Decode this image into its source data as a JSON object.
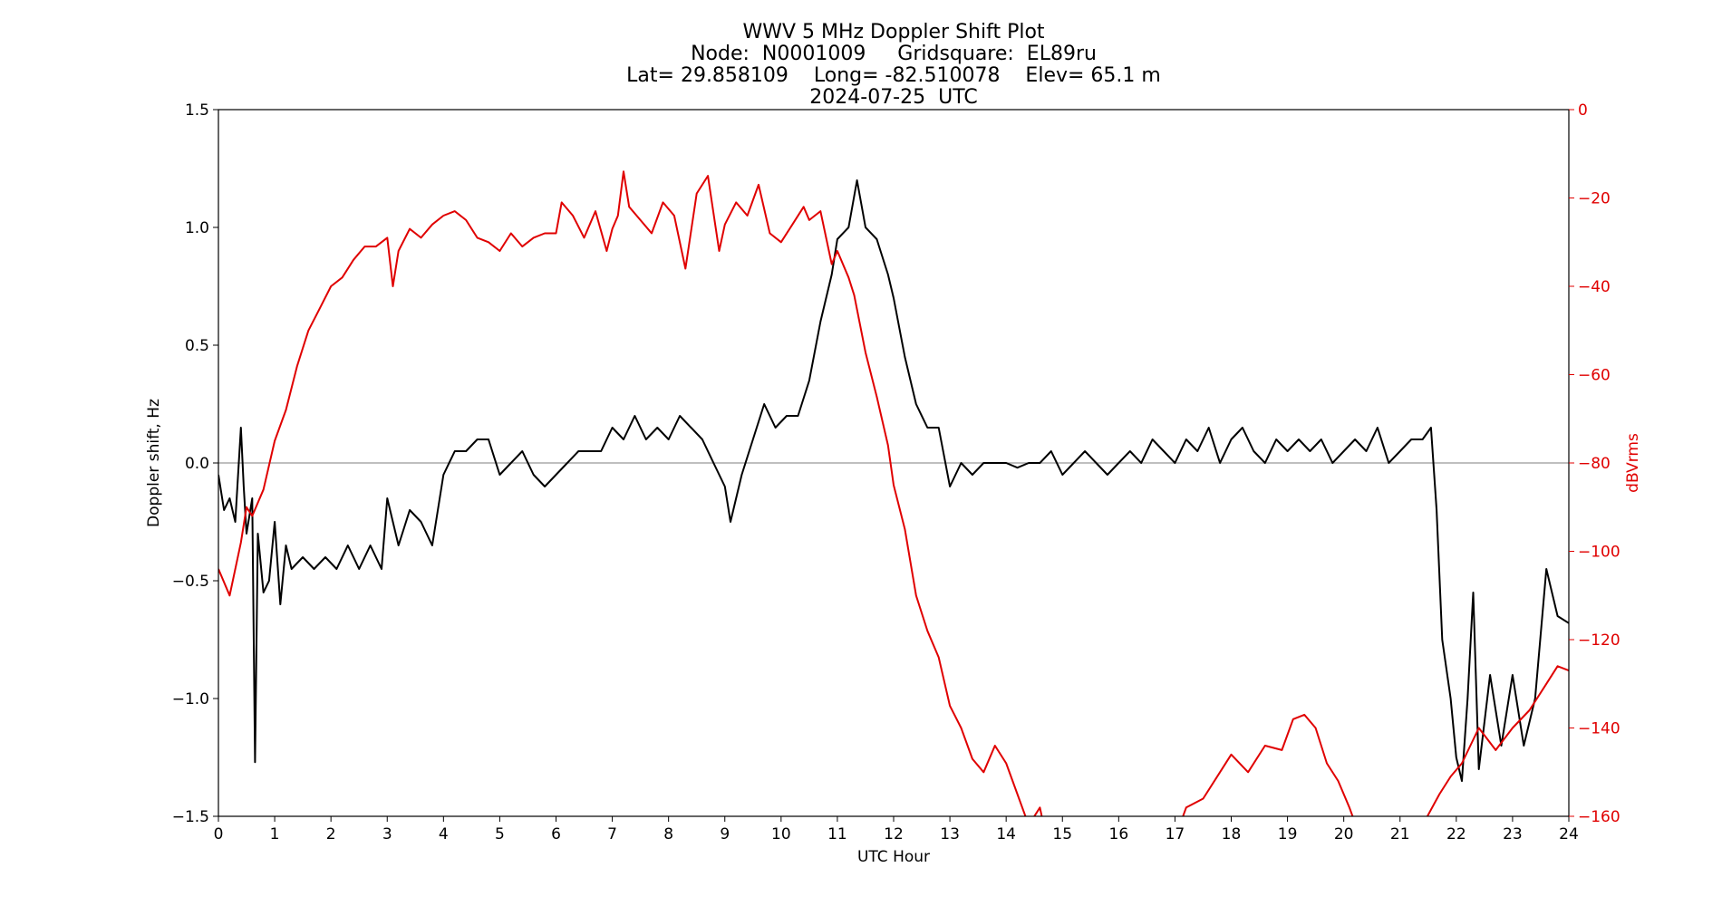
{
  "chart_data": {
    "type": "line",
    "title_lines": [
      "WWV 5 MHz Doppler Shift Plot",
      "Node:  N0001009     Gridsquare:  EL89ru",
      "Lat= 29.858109    Long= -82.510078    Elev= 65.1 m",
      "2024-07-25  UTC"
    ],
    "xlabel": "UTC Hour",
    "ylabel": "Doppler shift, Hz",
    "ylabel_right": "dBVrms",
    "xlim": [
      0,
      24
    ],
    "ylim": [
      -1.5,
      1.5
    ],
    "ylim_right": [
      -160,
      0
    ],
    "x_ticks": [
      0,
      1,
      2,
      3,
      4,
      5,
      6,
      7,
      8,
      9,
      10,
      11,
      12,
      13,
      14,
      15,
      16,
      17,
      18,
      19,
      20,
      21,
      22,
      23,
      24
    ],
    "y_ticks": [
      1.5,
      1.0,
      0.5,
      0.0,
      -0.5,
      -1.0,
      -1.5
    ],
    "y_tick_labels": [
      "1.5",
      "1.0",
      "0.5",
      "0.0",
      "−0.5",
      "−1.0",
      "−1.5"
    ],
    "y_ticks_right": [
      0,
      -20,
      -40,
      -60,
      -80,
      -100,
      -120,
      -140,
      -160
    ],
    "y_tick_labels_right": [
      "0",
      "−20",
      "−40",
      "−60",
      "−80",
      "−100",
      "−120",
      "−140",
      "−160"
    ],
    "reference_line_y": 0.0,
    "grid": false,
    "colors": {
      "doppler": "#000000",
      "power": "#e00000",
      "reference": "#999999"
    },
    "series": [
      {
        "axis": "left",
        "color": "#000000",
        "points": [
          [
            0,
            -0.05
          ],
          [
            0.1,
            -0.2
          ],
          [
            0.2,
            -0.15
          ],
          [
            0.3,
            -0.25
          ],
          [
            0.4,
            0.15
          ],
          [
            0.45,
            -0.1
          ],
          [
            0.5,
            -0.3
          ],
          [
            0.6,
            -0.15
          ],
          [
            0.65,
            -1.27
          ],
          [
            0.7,
            -0.3
          ],
          [
            0.8,
            -0.55
          ],
          [
            0.9,
            -0.5
          ],
          [
            1.0,
            -0.25
          ],
          [
            1.1,
            -0.6
          ],
          [
            1.2,
            -0.35
          ],
          [
            1.3,
            -0.45
          ],
          [
            1.5,
            -0.4
          ],
          [
            1.7,
            -0.45
          ],
          [
            1.9,
            -0.4
          ],
          [
            2.1,
            -0.45
          ],
          [
            2.3,
            -0.35
          ],
          [
            2.5,
            -0.45
          ],
          [
            2.7,
            -0.35
          ],
          [
            2.9,
            -0.45
          ],
          [
            3.0,
            -0.15
          ],
          [
            3.2,
            -0.35
          ],
          [
            3.4,
            -0.2
          ],
          [
            3.6,
            -0.25
          ],
          [
            3.8,
            -0.35
          ],
          [
            4.0,
            -0.05
          ],
          [
            4.2,
            0.05
          ],
          [
            4.4,
            0.05
          ],
          [
            4.6,
            0.1
          ],
          [
            4.8,
            0.1
          ],
          [
            5.0,
            -0.05
          ],
          [
            5.2,
            0.0
          ],
          [
            5.4,
            0.05
          ],
          [
            5.6,
            -0.05
          ],
          [
            5.8,
            -0.1
          ],
          [
            6.0,
            -0.05
          ],
          [
            6.2,
            0.0
          ],
          [
            6.4,
            0.05
          ],
          [
            6.6,
            0.05
          ],
          [
            6.8,
            0.05
          ],
          [
            7.0,
            0.15
          ],
          [
            7.2,
            0.1
          ],
          [
            7.4,
            0.2
          ],
          [
            7.6,
            0.1
          ],
          [
            7.8,
            0.15
          ],
          [
            8.0,
            0.1
          ],
          [
            8.2,
            0.2
          ],
          [
            8.4,
            0.15
          ],
          [
            8.6,
            0.1
          ],
          [
            8.8,
            0.0
          ],
          [
            9.0,
            -0.1
          ],
          [
            9.1,
            -0.25
          ],
          [
            9.3,
            -0.05
          ],
          [
            9.5,
            0.1
          ],
          [
            9.7,
            0.25
          ],
          [
            9.9,
            0.15
          ],
          [
            10.1,
            0.2
          ],
          [
            10.3,
            0.2
          ],
          [
            10.5,
            0.35
          ],
          [
            10.7,
            0.6
          ],
          [
            10.9,
            0.8
          ],
          [
            11.0,
            0.95
          ],
          [
            11.2,
            1.0
          ],
          [
            11.35,
            1.2
          ],
          [
            11.5,
            1.0
          ],
          [
            11.7,
            0.95
          ],
          [
            11.9,
            0.8
          ],
          [
            12.0,
            0.7
          ],
          [
            12.2,
            0.45
          ],
          [
            12.4,
            0.25
          ],
          [
            12.6,
            0.15
          ],
          [
            12.8,
            0.15
          ],
          [
            13.0,
            -0.1
          ],
          [
            13.2,
            0.0
          ],
          [
            13.4,
            -0.05
          ],
          [
            13.6,
            0.0
          ],
          [
            13.8,
            0.0
          ],
          [
            14.0,
            0.0
          ],
          [
            14.2,
            -0.02
          ],
          [
            14.4,
            0.0
          ],
          [
            14.6,
            0.0
          ],
          [
            14.8,
            0.05
          ],
          [
            15.0,
            -0.05
          ],
          [
            15.2,
            0.0
          ],
          [
            15.4,
            0.05
          ],
          [
            15.6,
            0.0
          ],
          [
            15.8,
            -0.05
          ],
          [
            16.0,
            0.0
          ],
          [
            16.2,
            0.05
          ],
          [
            16.4,
            0.0
          ],
          [
            16.6,
            0.1
          ],
          [
            16.8,
            0.05
          ],
          [
            17.0,
            0.0
          ],
          [
            17.2,
            0.1
          ],
          [
            17.4,
            0.05
          ],
          [
            17.6,
            0.15
          ],
          [
            17.8,
            0.0
          ],
          [
            18.0,
            0.1
          ],
          [
            18.2,
            0.15
          ],
          [
            18.4,
            0.05
          ],
          [
            18.6,
            0.0
          ],
          [
            18.8,
            0.1
          ],
          [
            19.0,
            0.05
          ],
          [
            19.2,
            0.1
          ],
          [
            19.4,
            0.05
          ],
          [
            19.6,
            0.1
          ],
          [
            19.8,
            0.0
          ],
          [
            20.0,
            0.05
          ],
          [
            20.2,
            0.1
          ],
          [
            20.4,
            0.05
          ],
          [
            20.6,
            0.15
          ],
          [
            20.8,
            0.0
          ],
          [
            21.0,
            0.05
          ],
          [
            21.2,
            0.1
          ],
          [
            21.4,
            0.1
          ],
          [
            21.55,
            0.15
          ],
          [
            21.65,
            -0.2
          ],
          [
            21.75,
            -0.75
          ],
          [
            21.9,
            -1.0
          ],
          [
            22.0,
            -1.25
          ],
          [
            22.1,
            -1.35
          ],
          [
            22.2,
            -1.0
          ],
          [
            22.3,
            -0.55
          ],
          [
            22.4,
            -1.3
          ],
          [
            22.6,
            -0.9
          ],
          [
            22.8,
            -1.2
          ],
          [
            23.0,
            -0.9
          ],
          [
            23.2,
            -1.2
          ],
          [
            23.4,
            -1.0
          ],
          [
            23.6,
            -0.45
          ],
          [
            23.8,
            -0.65
          ],
          [
            24.0,
            -0.68
          ]
        ]
      },
      {
        "axis": "right",
        "color": "#e00000",
        "points": [
          [
            0,
            -104
          ],
          [
            0.2,
            -110
          ],
          [
            0.4,
            -98
          ],
          [
            0.5,
            -90
          ],
          [
            0.6,
            -92
          ],
          [
            0.8,
            -86
          ],
          [
            1.0,
            -75
          ],
          [
            1.2,
            -68
          ],
          [
            1.4,
            -58
          ],
          [
            1.6,
            -50
          ],
          [
            1.8,
            -45
          ],
          [
            2.0,
            -40
          ],
          [
            2.2,
            -38
          ],
          [
            2.4,
            -34
          ],
          [
            2.6,
            -31
          ],
          [
            2.8,
            -31
          ],
          [
            3.0,
            -29
          ],
          [
            3.1,
            -40
          ],
          [
            3.2,
            -32
          ],
          [
            3.4,
            -27
          ],
          [
            3.6,
            -29
          ],
          [
            3.8,
            -26
          ],
          [
            4.0,
            -24
          ],
          [
            4.2,
            -23
          ],
          [
            4.4,
            -25
          ],
          [
            4.6,
            -29
          ],
          [
            4.8,
            -30
          ],
          [
            5.0,
            -32
          ],
          [
            5.2,
            -28
          ],
          [
            5.4,
            -31
          ],
          [
            5.6,
            -29
          ],
          [
            5.8,
            -28
          ],
          [
            6.0,
            -28
          ],
          [
            6.1,
            -21
          ],
          [
            6.3,
            -24
          ],
          [
            6.5,
            -29
          ],
          [
            6.7,
            -23
          ],
          [
            6.9,
            -32
          ],
          [
            7.0,
            -27
          ],
          [
            7.1,
            -24
          ],
          [
            7.2,
            -14
          ],
          [
            7.3,
            -22
          ],
          [
            7.5,
            -25
          ],
          [
            7.7,
            -28
          ],
          [
            7.9,
            -21
          ],
          [
            8.1,
            -24
          ],
          [
            8.3,
            -36
          ],
          [
            8.5,
            -19
          ],
          [
            8.7,
            -15
          ],
          [
            8.9,
            -32
          ],
          [
            9.0,
            -26
          ],
          [
            9.2,
            -21
          ],
          [
            9.4,
            -24
          ],
          [
            9.6,
            -17
          ],
          [
            9.8,
            -28
          ],
          [
            10.0,
            -30
          ],
          [
            10.2,
            -26
          ],
          [
            10.4,
            -22
          ],
          [
            10.5,
            -25
          ],
          [
            10.7,
            -23
          ],
          [
            10.9,
            -35
          ],
          [
            11.0,
            -32
          ],
          [
            11.2,
            -38
          ],
          [
            11.3,
            -42
          ],
          [
            11.5,
            -55
          ],
          [
            11.7,
            -65
          ],
          [
            11.9,
            -76
          ],
          [
            12.0,
            -85
          ],
          [
            12.2,
            -95
          ],
          [
            12.4,
            -110
          ],
          [
            12.6,
            -118
          ],
          [
            12.8,
            -124
          ],
          [
            13.0,
            -135
          ],
          [
            13.2,
            -140
          ],
          [
            13.4,
            -147
          ],
          [
            13.6,
            -150
          ],
          [
            13.8,
            -144
          ],
          [
            14.0,
            -148
          ],
          [
            14.2,
            -155
          ],
          [
            14.4,
            -162
          ],
          [
            14.6,
            -158
          ],
          [
            14.8,
            -170
          ],
          [
            15.5,
            -175
          ],
          [
            16.5,
            -172
          ],
          [
            17.0,
            -165
          ],
          [
            17.2,
            -158
          ],
          [
            17.5,
            -156
          ],
          [
            17.8,
            -150
          ],
          [
            18.0,
            -146
          ],
          [
            18.3,
            -150
          ],
          [
            18.6,
            -144
          ],
          [
            18.9,
            -145
          ],
          [
            19.1,
            -138
          ],
          [
            19.3,
            -137
          ],
          [
            19.5,
            -140
          ],
          [
            19.7,
            -148
          ],
          [
            19.9,
            -152
          ],
          [
            20.1,
            -158
          ],
          [
            20.3,
            -165
          ],
          [
            20.6,
            -170
          ],
          [
            21.0,
            -168
          ],
          [
            21.4,
            -162
          ],
          [
            21.7,
            -155
          ],
          [
            21.9,
            -151
          ],
          [
            22.1,
            -148
          ],
          [
            22.4,
            -140
          ],
          [
            22.7,
            -145
          ],
          [
            23.0,
            -140
          ],
          [
            23.3,
            -136
          ],
          [
            23.6,
            -130
          ],
          [
            23.8,
            -126
          ],
          [
            24.0,
            -127
          ]
        ]
      }
    ]
  }
}
